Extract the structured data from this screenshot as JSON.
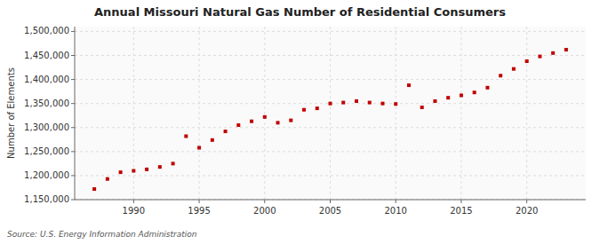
{
  "chart_data": {
    "type": "scatter",
    "title": "Annual Missouri Natural Gas Number of Residential Consumers",
    "y_label": "Number of Elements",
    "annotations": [
      "Source: U.S. Energy Information Administration"
    ],
    "x": [
      1987,
      1988,
      1989,
      1990,
      1991,
      1992,
      1993,
      1994,
      1995,
      1996,
      1997,
      1998,
      1999,
      2000,
      2001,
      2002,
      2003,
      2004,
      2005,
      2006,
      2007,
      2008,
      2009,
      2010,
      2011,
      2012,
      2013,
      2014,
      2015,
      2016,
      2017,
      2018,
      2019,
      2020,
      2021,
      2022,
      2023
    ],
    "values": [
      1172000,
      1193000,
      1207000,
      1210000,
      1213000,
      1218000,
      1225000,
      1282000,
      1258000,
      1274000,
      1292000,
      1305000,
      1313000,
      1322000,
      1310000,
      1315000,
      1337000,
      1340000,
      1350000,
      1352000,
      1355000,
      1352000,
      1350000,
      1349000,
      1388000,
      1342000,
      1355000,
      1362000,
      1367000,
      1373000,
      1383000,
      1408000,
      1422000,
      1438000,
      1448000,
      1455000,
      1462000
    ],
    "color": "#c00000",
    "marker": "square",
    "xlim": [
      1985.5,
      2024.5
    ],
    "xticks": [
      1990,
      1995,
      2000,
      2005,
      2010,
      2015,
      2020
    ],
    "ylim": [
      1150000,
      1510000
    ],
    "yticks": [
      {
        "value": 1150000,
        "label": "1,150,000"
      },
      {
        "value": 1200000,
        "label": "1,200,000"
      },
      {
        "value": 1250000,
        "label": "1,250,000"
      },
      {
        "value": 1300000,
        "label": "1,300,000"
      },
      {
        "value": 1350000,
        "label": "1,350,000"
      },
      {
        "value": 1400000,
        "label": "1,400,000"
      },
      {
        "value": 1450000,
        "label": "1,450,000"
      },
      {
        "value": 1500000,
        "label": "1,500,000"
      }
    ],
    "grid": true
  }
}
